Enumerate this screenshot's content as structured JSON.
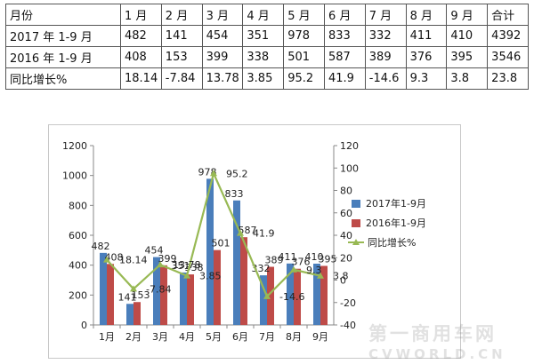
{
  "table": {
    "header": [
      "月份",
      "1 月",
      "2 月",
      "3 月",
      "4 月",
      "5 月",
      "6 月",
      "7 月",
      "8 月",
      "9 月",
      "合计"
    ],
    "rows": [
      [
        "2017 年 1-9 月",
        "482",
        "141",
        "454",
        "351",
        "978",
        "833",
        "332",
        "411",
        "410",
        "4392"
      ],
      [
        "2016 年 1-9 月",
        "408",
        "153",
        "399",
        "338",
        "501",
        "587",
        "389",
        "376",
        "395",
        "3546"
      ],
      [
        "同比增长%",
        "18.14",
        "-7.84",
        "13.78",
        "3.85",
        "95.2",
        "41.9",
        "-14.6",
        "9.3",
        "3.8",
        "23.8"
      ]
    ]
  },
  "chart_data": {
    "type": "bar",
    "categories": [
      "1月",
      "2月",
      "3月",
      "4月",
      "5月",
      "6月",
      "7月",
      "8月",
      "9月"
    ],
    "series": [
      {
        "name": "2017年1-9月",
        "type": "bar",
        "axis": "left",
        "color": "#4a7ebb",
        "values": [
          482,
          141,
          454,
          351,
          978,
          833,
          332,
          411,
          410
        ]
      },
      {
        "name": "2016年1-9月",
        "type": "bar",
        "axis": "left",
        "color": "#be4b48",
        "values": [
          408,
          153,
          399,
          338,
          501,
          587,
          389,
          376,
          395
        ]
      },
      {
        "name": "同比增长%",
        "type": "line",
        "axis": "right",
        "color": "#98b954",
        "values": [
          18.14,
          -7.84,
          13.78,
          3.85,
          95.2,
          41.9,
          -14.6,
          9.3,
          3.8
        ]
      }
    ],
    "y_left": {
      "min": 0,
      "max": 1200,
      "step": 200,
      "ticks": [
        "0",
        "200",
        "400",
        "600",
        "800",
        "1000",
        "1200"
      ]
    },
    "y_right": {
      "min": -40,
      "max": 120,
      "step": 20,
      "ticks": [
        "-40",
        "-20",
        "0",
        "20",
        "40",
        "60",
        "80",
        "100",
        "120"
      ]
    },
    "legend_position": "right",
    "grid": false
  },
  "watermark": {
    "cn": "第一商用车网",
    "en": "CVWORLD.CN"
  }
}
